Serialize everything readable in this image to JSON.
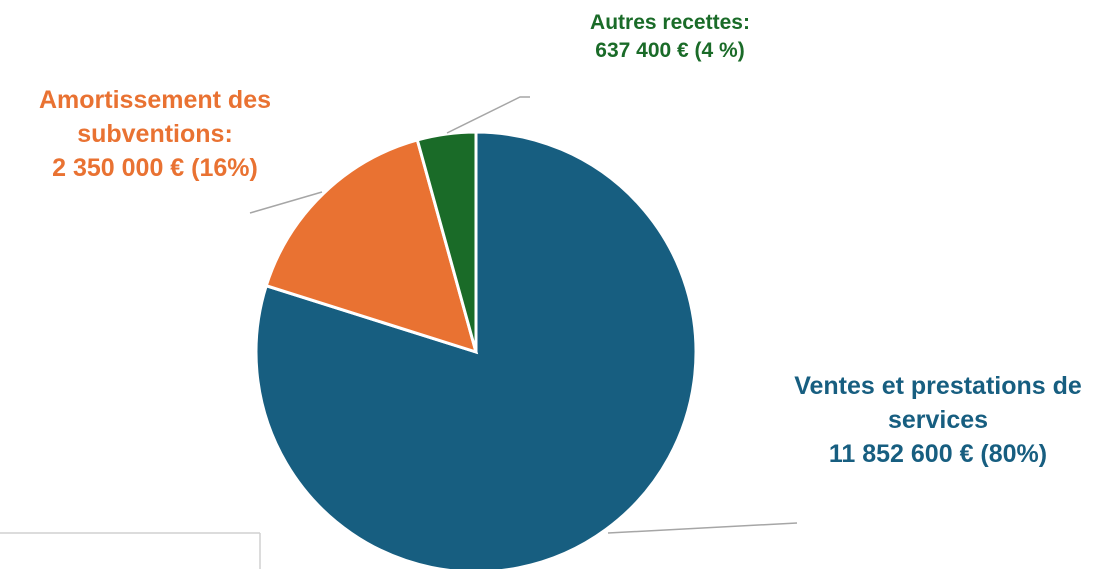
{
  "chart_data": {
    "type": "pie",
    "categories": [
      "Ventes et prestations de services",
      "Amortissement des subventions:",
      "Autres recettes:"
    ],
    "values": [
      11852600,
      2350000,
      637400
    ],
    "value_labels": [
      "11 852 600 € (80%)",
      "2 350 000 € (16%)",
      "637 400 € (4 %)"
    ],
    "colors": [
      "#175e80",
      "#e97232",
      "#1a6b28"
    ]
  }
}
